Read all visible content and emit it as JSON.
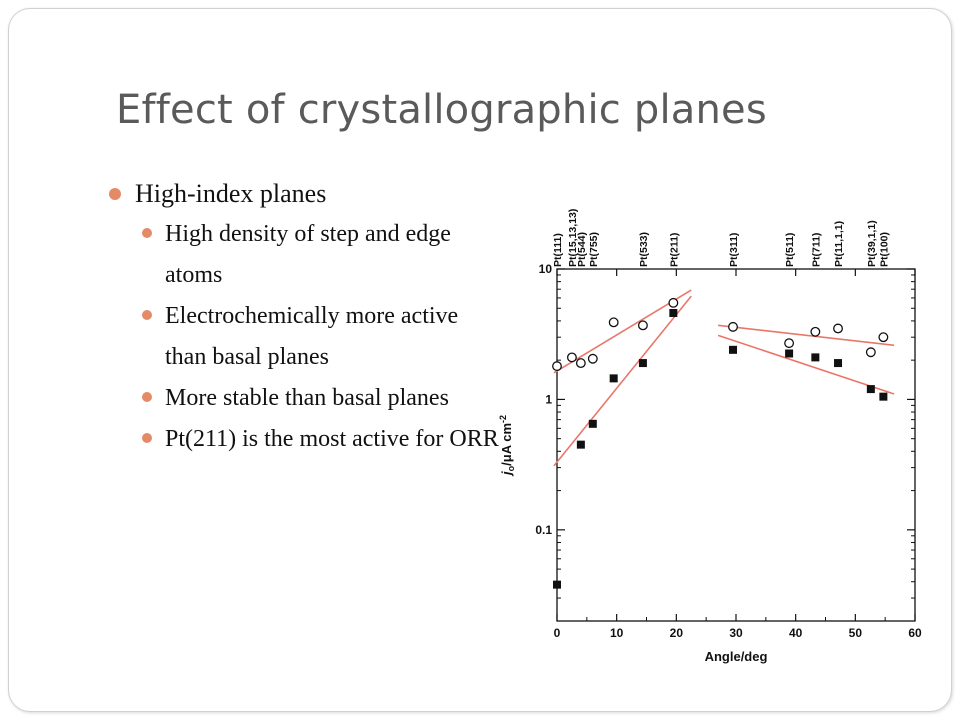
{
  "slide": {
    "title": "Effect of crystallographic planes",
    "bullet": "High-index planes",
    "sub_bullets": [
      "High density of step and edge atoms",
      "Electrochemically more active than basal planes",
      "More stable than basal planes",
      "Pt(211) is the most active for ORR"
    ]
  },
  "colors": {
    "bullet": "#e58a67",
    "title": "#5a5a5a",
    "fit_line": "#e8776a"
  },
  "chart_data": {
    "type": "scatter",
    "xlabel": "Angle/deg",
    "ylabel_main": "j",
    "ylabel_sub": "o",
    "ylabel_unit": "/μA cm",
    "ylabel_sup": "-2",
    "xlim": [
      0,
      60
    ],
    "ylim": [
      0.02,
      10
    ],
    "y_scale": "log",
    "x_ticks": [
      0,
      10,
      20,
      30,
      40,
      50,
      60
    ],
    "x_tick_labels": [
      "0",
      "10",
      "20",
      "30",
      "40",
      "50",
      "60"
    ],
    "y_ticks": [
      0.1,
      1,
      10
    ],
    "y_tick_labels": [
      "0.1",
      "1",
      "10"
    ],
    "top_labels": [
      {
        "x": 0,
        "label": "Pt(111)"
      },
      {
        "x": 2.5,
        "label": "Pt(15,13,13)"
      },
      {
        "x": 4,
        "label": "Pt(544)"
      },
      {
        "x": 6,
        "label": "Pt(755)"
      },
      {
        "x": 14.4,
        "label": "Pt(533)"
      },
      {
        "x": 19.5,
        "label": "Pt(211)"
      },
      {
        "x": 29.5,
        "label": "Pt(311)"
      },
      {
        "x": 38.9,
        "label": "Pt(511)"
      },
      {
        "x": 43.3,
        "label": "Pt(711)"
      },
      {
        "x": 47.1,
        "label": "Pt(11,1,1)"
      },
      {
        "x": 52.6,
        "label": "Pt(39,1,1)"
      },
      {
        "x": 54.7,
        "label": "Pt(100)"
      }
    ],
    "series": [
      {
        "marker": "open-circle",
        "points": [
          [
            0,
            1.8
          ],
          [
            2.5,
            2.1
          ],
          [
            4,
            1.9
          ],
          [
            6,
            2.05
          ],
          [
            9.5,
            3.9
          ],
          [
            14.4,
            3.7
          ],
          [
            19.5,
            5.5
          ],
          [
            29.5,
            3.6
          ],
          [
            38.9,
            2.7
          ],
          [
            43.3,
            3.3
          ],
          [
            47.1,
            3.5
          ],
          [
            52.6,
            2.3
          ],
          [
            54.7,
            3.0
          ]
        ]
      },
      {
        "marker": "filled-square",
        "points": [
          [
            0,
            0.038
          ],
          [
            4,
            0.45
          ],
          [
            6,
            0.65
          ],
          [
            9.5,
            1.45
          ],
          [
            14.4,
            1.9
          ],
          [
            19.5,
            4.6
          ],
          [
            29.5,
            2.4
          ],
          [
            38.9,
            2.25
          ],
          [
            43.3,
            2.1
          ],
          [
            47.1,
            1.9
          ],
          [
            52.6,
            1.2
          ],
          [
            54.7,
            1.05
          ]
        ]
      }
    ],
    "fit_lines": [
      [
        [
          -0.5,
          1.6
        ],
        [
          22.5,
          6.9
        ]
      ],
      [
        [
          -0.5,
          0.31
        ],
        [
          22.5,
          6.2
        ]
      ],
      [
        [
          27,
          3.7
        ],
        [
          56.5,
          2.6
        ]
      ],
      [
        [
          27,
          3.1
        ],
        [
          56.5,
          1.1
        ]
      ]
    ]
  }
}
